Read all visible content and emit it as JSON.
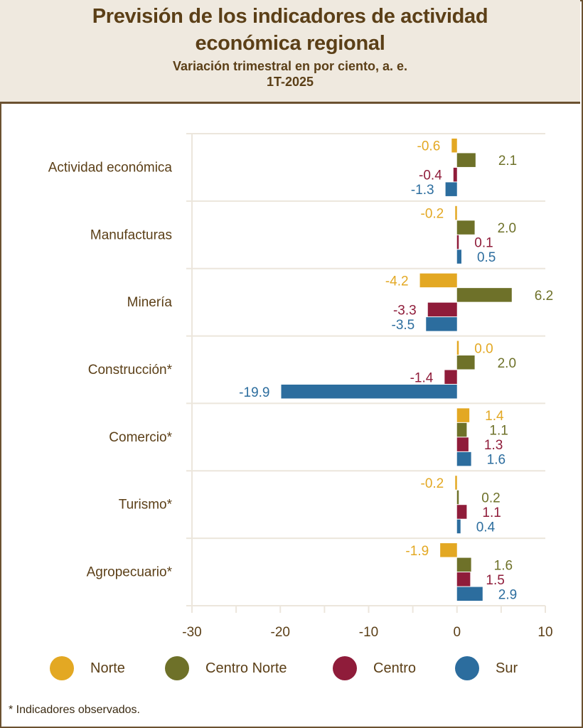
{
  "header": {
    "title_line1": "Previsión de los indicadores de actividad",
    "title_line2": "económica regional",
    "subtitle": "Variación trimestral en por ciento, a. e.",
    "period": "1T-2025"
  },
  "legend": [
    {
      "name": "Norte",
      "color": "#e3a823"
    },
    {
      "name": "Centro Norte",
      "color": "#6e7129"
    },
    {
      "name": "Centro",
      "color": "#8f1c3a"
    },
    {
      "name": "Sur",
      "color": "#2c6d9e"
    }
  ],
  "footnote": "* Indicadores observados.",
  "chart_data": {
    "type": "bar",
    "orientation": "horizontal",
    "title": "Previsión de los indicadores de actividad económica regional",
    "subtitle": "Variación trimestral en por ciento, a. e. 1T-2025",
    "xlabel": "",
    "ylabel": "",
    "xlim": [
      -30,
      10
    ],
    "x_ticks": [
      -30,
      -20,
      -10,
      0,
      10
    ],
    "x_minor_ticks": [
      -25,
      -15,
      -5,
      5
    ],
    "grid": "horizontal category separators",
    "legend_position": "bottom",
    "categories": [
      "Actividad económica",
      "Manufacturas",
      "Minería",
      "Construcción*",
      "Comercio*",
      "Turismo*",
      "Agropecuario*"
    ],
    "series": [
      {
        "name": "Norte",
        "color": "#e3a823",
        "values": [
          -0.6,
          -0.2,
          -4.2,
          0.0,
          1.4,
          -0.2,
          -1.9
        ]
      },
      {
        "name": "Centro Norte",
        "color": "#6e7129",
        "values": [
          2.1,
          2.0,
          6.2,
          2.0,
          1.1,
          0.2,
          1.6
        ]
      },
      {
        "name": "Centro",
        "color": "#8f1c3a",
        "values": [
          -0.4,
          0.1,
          -3.3,
          -1.4,
          1.3,
          1.1,
          1.5
        ]
      },
      {
        "name": "Sur",
        "color": "#2c6d9e",
        "values": [
          -1.3,
          0.5,
          -3.5,
          -19.9,
          1.6,
          0.4,
          2.9
        ]
      }
    ]
  }
}
